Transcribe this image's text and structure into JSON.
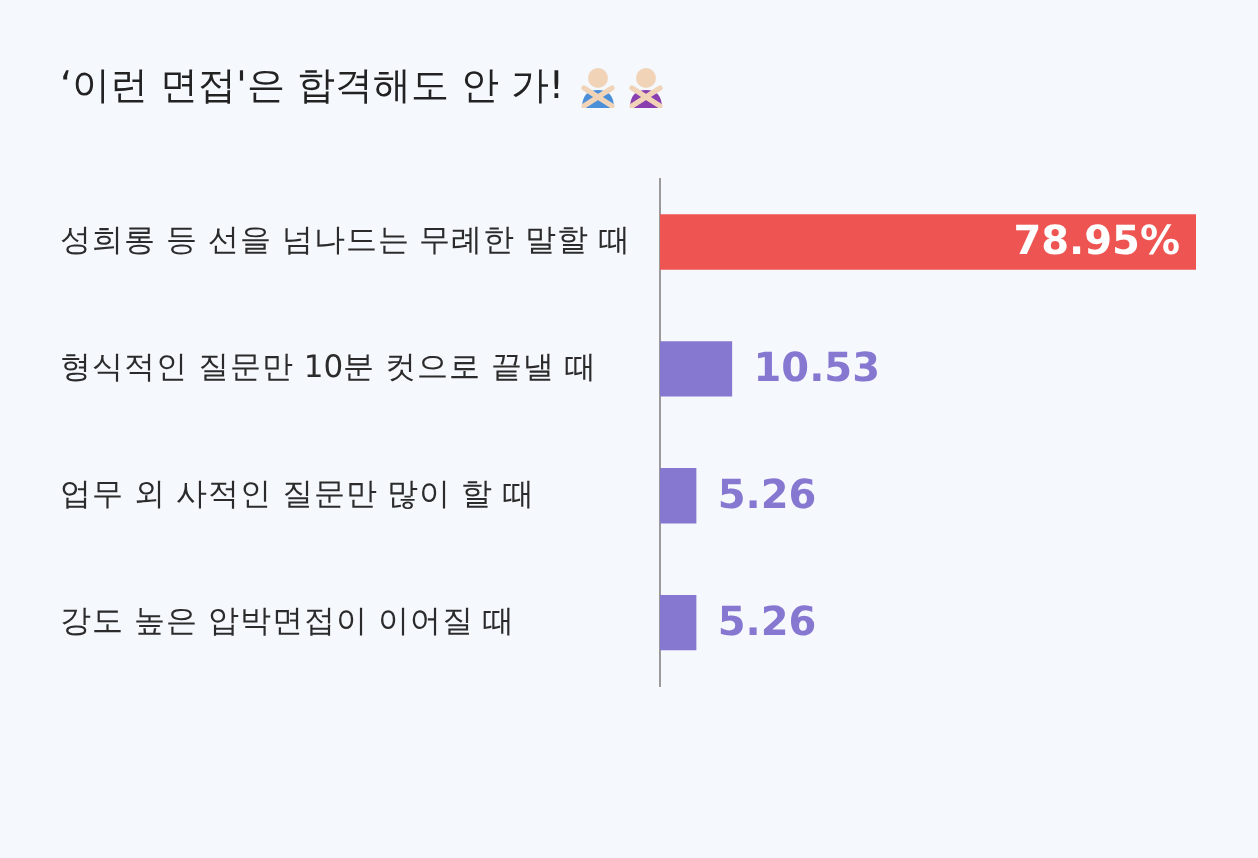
{
  "chart_data": {
    "type": "bar",
    "orientation": "horizontal",
    "title": "‘이런 면접'은 합격해도 안 가!",
    "categories": [
      "성희롱 등 선을 넘나드는 무례한 말할 때",
      "형식적인 질문만 10분 컷으로 끝낼 때",
      "업무 외 사적인 질문만 많이 할 때",
      "강도 높은 압박면접이 이어질 때"
    ],
    "values": [
      78.95,
      10.53,
      5.26,
      5.26
    ],
    "colors": [
      "#ee5451",
      "#8677d1",
      "#8677d1",
      "#8677d1"
    ],
    "value_labels": [
      "78.95%",
      "10.53",
      "5.26",
      "5.26"
    ]
  }
}
